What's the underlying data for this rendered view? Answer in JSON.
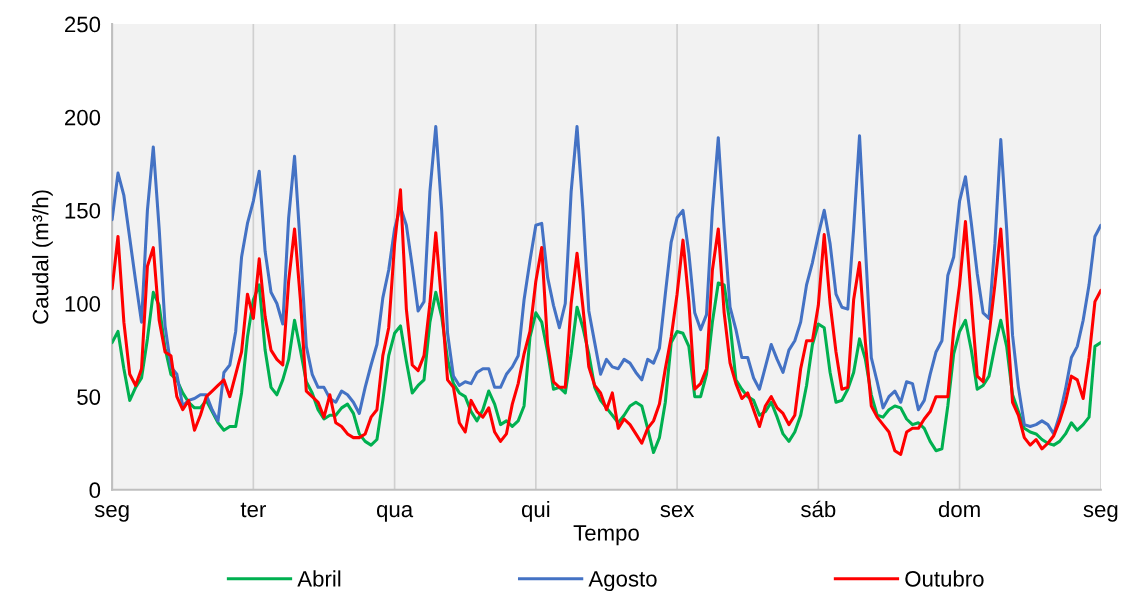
{
  "chart_data": {
    "type": "line",
    "xlabel": "Tempo",
    "ylabel": "Caudal (m³/h)",
    "categories": [
      "seg",
      null,
      null,
      null,
      null,
      null,
      null,
      null,
      null,
      null,
      null,
      null,
      null,
      null,
      null,
      null,
      null,
      null,
      null,
      null,
      null,
      null,
      null,
      null,
      "ter",
      null,
      null,
      null,
      null,
      null,
      null,
      null,
      null,
      null,
      null,
      null,
      null,
      null,
      null,
      null,
      null,
      null,
      null,
      null,
      null,
      null,
      null,
      null,
      "qua",
      null,
      null,
      null,
      null,
      null,
      null,
      null,
      null,
      null,
      null,
      null,
      null,
      null,
      null,
      null,
      null,
      null,
      null,
      null,
      null,
      null,
      null,
      null,
      "qui",
      null,
      null,
      null,
      null,
      null,
      null,
      null,
      null,
      null,
      null,
      null,
      null,
      null,
      null,
      null,
      null,
      null,
      null,
      null,
      null,
      null,
      null,
      null,
      "sex",
      null,
      null,
      null,
      null,
      null,
      null,
      null,
      null,
      null,
      null,
      null,
      null,
      null,
      null,
      null,
      null,
      null,
      null,
      null,
      null,
      null,
      null,
      null,
      "sáb",
      null,
      null,
      null,
      null,
      null,
      null,
      null,
      null,
      null,
      null,
      null,
      null,
      null,
      null,
      null,
      null,
      null,
      null,
      null,
      null,
      null,
      null,
      null,
      "dom",
      null,
      null,
      null,
      null,
      null,
      null,
      null,
      null,
      null,
      null,
      null,
      null,
      null,
      null,
      null,
      null,
      null,
      null,
      null,
      null,
      null,
      null,
      null,
      "seg"
    ],
    "ylim": [
      0,
      250
    ],
    "yticks": [
      0,
      50,
      100,
      150,
      200,
      250
    ],
    "grid": "x",
    "legend": "bottom",
    "marker": "none",
    "line_style": "solid",
    "series": [
      {
        "name": "Abril",
        "color": "#00b050",
        "values": [
          79,
          85,
          65,
          48,
          55,
          60,
          81,
          106,
          99,
          76,
          62,
          59,
          52,
          47,
          44,
          44,
          48,
          42,
          36,
          32,
          34,
          34,
          52,
          82,
          102,
          110,
          75,
          55,
          51,
          59,
          70,
          91,
          75,
          58,
          52,
          43,
          38,
          40,
          40,
          44,
          46,
          41,
          30,
          26,
          24,
          27,
          48,
          72,
          84,
          88,
          69,
          52,
          56,
          59,
          90,
          106,
          93,
          70,
          57,
          52,
          50,
          42,
          37,
          43,
          53,
          46,
          35,
          37,
          34,
          37,
          45,
          82,
          95,
          90,
          74,
          54,
          55,
          52,
          73,
          98,
          87,
          73,
          55,
          48,
          44,
          40,
          36,
          40,
          45,
          47,
          45,
          33,
          20,
          28,
          47,
          79,
          85,
          84,
          77,
          50,
          50,
          62,
          90,
          111,
          110,
          89,
          59,
          54,
          50,
          48,
          40,
          42,
          47,
          39,
          30,
          26,
          31,
          40,
          56,
          78,
          89,
          87,
          63,
          47,
          48,
          54,
          63,
          81,
          70,
          51,
          40,
          39,
          43,
          45,
          44,
          38,
          35,
          36,
          33,
          26,
          21,
          22,
          45,
          73,
          85,
          91,
          75,
          54,
          56,
          61,
          77,
          91,
          77,
          51,
          42,
          33,
          31,
          30,
          27,
          25,
          24,
          26,
          30,
          36,
          32,
          35,
          39,
          77,
          79
        ]
      },
      {
        "name": "Agosto",
        "color": "#4472c4",
        "values": [
          145,
          170,
          158,
          135,
          112,
          90,
          150,
          184,
          140,
          88,
          66,
          62,
          45,
          48,
          49,
          51,
          51,
          43,
          37,
          63,
          67,
          85,
          125,
          143,
          155,
          171,
          128,
          106,
          100,
          89,
          146,
          179,
          130,
          77,
          62,
          55,
          55,
          49,
          47,
          53,
          51,
          47,
          41,
          55,
          67,
          78,
          103,
          118,
          140,
          152,
          142,
          120,
          96,
          101,
          160,
          195,
          150,
          84,
          61,
          56,
          58,
          57,
          63,
          65,
          65,
          55,
          55,
          62,
          66,
          72,
          102,
          123,
          142,
          143,
          114,
          99,
          87,
          100,
          160,
          195,
          150,
          96,
          79,
          62,
          70,
          66,
          65,
          70,
          68,
          63,
          59,
          70,
          68,
          76,
          105,
          133,
          146,
          150,
          127,
          95,
          86,
          94,
          150,
          189,
          140,
          98,
          86,
          71,
          71,
          60,
          54,
          66,
          78,
          70,
          63,
          75,
          80,
          90,
          110,
          122,
          137,
          150,
          132,
          105,
          98,
          97,
          140,
          190,
          130,
          71,
          58,
          44,
          50,
          53,
          47,
          58,
          57,
          43,
          48,
          62,
          74,
          80,
          115,
          125,
          155,
          168,
          143,
          116,
          95,
          92,
          132,
          188,
          140,
          83,
          55,
          35,
          34,
          35,
          37,
          35,
          30,
          40,
          54,
          71,
          77,
          91,
          110,
          136,
          142
        ]
      },
      {
        "name": "Outubro",
        "color": "#ff0000",
        "values": [
          108,
          136,
          90,
          62,
          56,
          65,
          120,
          130,
          91,
          74,
          72,
          50,
          43,
          48,
          32,
          40,
          50,
          53,
          56,
          59,
          50,
          62,
          74,
          105,
          92,
          124,
          93,
          75,
          70,
          67,
          112,
          140,
          102,
          53,
          50,
          47,
          39,
          51,
          36,
          34,
          30,
          28,
          28,
          30,
          39,
          43,
          72,
          87,
          132,
          161,
          97,
          67,
          64,
          72,
          100,
          138,
          100,
          59,
          55,
          36,
          31,
          48,
          42,
          39,
          44,
          31,
          26,
          30,
          46,
          57,
          73,
          85,
          112,
          130,
          78,
          58,
          55,
          55,
          100,
          127,
          98,
          66,
          56,
          52,
          43,
          52,
          33,
          38,
          35,
          30,
          25,
          33,
          37,
          46,
          65,
          82,
          105,
          134,
          101,
          54,
          57,
          65,
          118,
          140,
          95,
          68,
          57,
          49,
          52,
          43,
          34,
          45,
          50,
          44,
          41,
          35,
          40,
          65,
          80,
          80,
          99,
          137,
          100,
          74,
          54,
          55,
          102,
          122,
          79,
          45,
          39,
          35,
          31,
          21,
          19,
          31,
          33,
          33,
          38,
          42,
          50,
          50,
          50,
          86,
          110,
          144,
          101,
          61,
          58,
          83,
          110,
          140,
          95,
          47,
          40,
          28,
          24,
          27,
          22,
          25,
          29,
          37,
          47,
          61,
          59,
          49,
          71,
          101,
          107
        ]
      }
    ]
  }
}
